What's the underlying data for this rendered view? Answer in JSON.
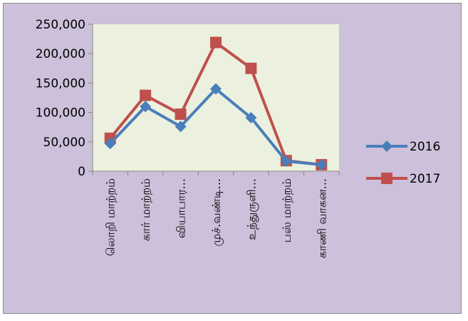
{
  "chart_data": {
    "type": "line",
    "categories": [
      "லொறி மாற்றம்",
      "கார் மாற்றம்",
      "வியாபார...",
      "முச்.வண்டி...",
      "உந்துருளி...",
      "பஸ் மாற்றம்",
      "காணி வாகன..."
    ],
    "series": [
      {
        "name": "2016",
        "values": [
          47000,
          110000,
          76000,
          140000,
          91000,
          17000,
          11000
        ],
        "color": "#4a7ebb",
        "marker": "diamond"
      },
      {
        "name": "2017",
        "values": [
          56000,
          129000,
          97000,
          219000,
          175000,
          18000,
          11000
        ],
        "color": "#c0504d",
        "marker": "square"
      }
    ],
    "ylim": [
      0,
      250000
    ],
    "yticks": [
      "0",
      "50,000",
      "100,000",
      "150,000",
      "200,000",
      "250,000"
    ],
    "plot_background": "#ebf1de",
    "chart_background": "#ccc0da",
    "grid": false,
    "legend_position": "right"
  }
}
